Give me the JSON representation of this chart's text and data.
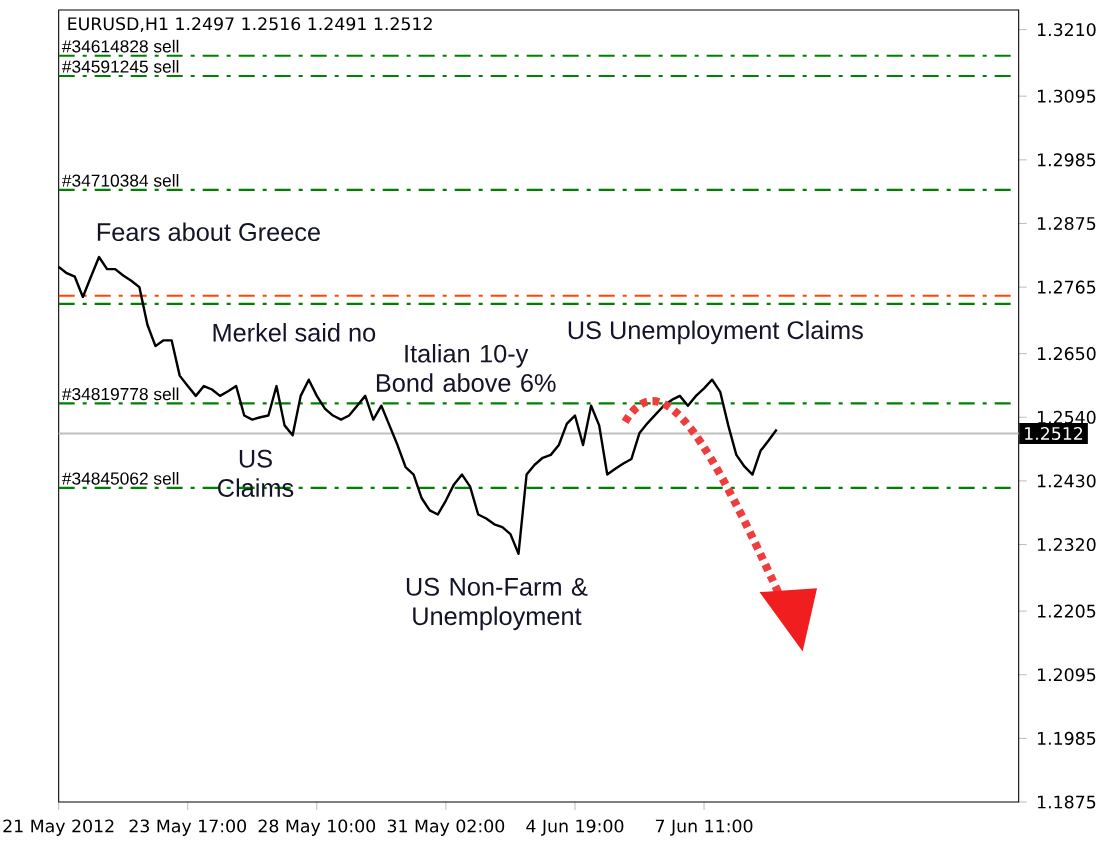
{
  "chart_data": {
    "type": "line",
    "title": "EURUSD,H1  1.2497 1.2516 1.2491 1.2512",
    "categories": [
      "21 May 2012",
      null,
      null,
      null,
      null,
      null,
      null,
      null,
      null,
      null,
      null,
      null,
      null,
      null,
      null,
      null,
      "23 May 17:00",
      null,
      null,
      null,
      null,
      null,
      null,
      null,
      null,
      null,
      null,
      null,
      null,
      null,
      null,
      null,
      "28 May 10:00",
      null,
      null,
      null,
      null,
      null,
      null,
      null,
      null,
      null,
      null,
      null,
      null,
      null,
      null,
      null,
      "31 May 02:00",
      null,
      null,
      null,
      null,
      null,
      null,
      null,
      null,
      null,
      null,
      null,
      null,
      null,
      null,
      null,
      "4 Jun 19:00",
      null,
      null,
      null,
      null,
      null,
      null,
      null,
      null,
      null,
      null,
      null,
      null,
      null,
      null,
      null,
      "7 Jun 11:00",
      null,
      null,
      null,
      null,
      null,
      null,
      null,
      null,
      null,
      null,
      null,
      null,
      null,
      null,
      null,
      null,
      null,
      null,
      null,
      null,
      null,
      null,
      null,
      null,
      null,
      null,
      null,
      null,
      null,
      null,
      null,
      null,
      null,
      null,
      null,
      null,
      null,
      null,
      null
    ],
    "series": [
      {
        "color": "#000000",
        "values": [
          1.28,
          1.2789,
          1.2783,
          1.2748,
          1.2783,
          1.2817,
          1.2796,
          1.2796,
          1.2785,
          1.2776,
          1.2765,
          1.27,
          1.2663,
          1.2673,
          1.2673,
          1.2612,
          1.2594,
          1.2577,
          1.2594,
          1.2588,
          1.2577,
          1.2585,
          1.2594,
          1.2543,
          1.2536,
          1.254,
          1.2543,
          1.2594,
          1.2526,
          1.2509,
          1.2577,
          1.2605,
          1.2577,
          1.2555,
          1.2543,
          1.2536,
          1.2543,
          1.256,
          1.2577,
          1.2536,
          1.256,
          1.2526,
          1.2492,
          1.2454,
          1.2441,
          1.24,
          1.2379,
          1.2372,
          1.2396,
          1.2424,
          1.2441,
          1.242,
          1.2372,
          1.2365,
          1.2355,
          1.235,
          1.2338,
          1.2304,
          1.2441,
          1.2458,
          1.247,
          1.2475,
          1.2492,
          1.2529,
          1.2543,
          1.2492,
          1.256,
          1.2526,
          1.2441,
          1.2451,
          1.246,
          1.2468,
          1.2513,
          1.253,
          1.2545,
          1.256,
          1.257,
          1.2577,
          1.256,
          1.2577,
          1.259,
          1.2605,
          1.2584,
          1.2526,
          1.2475,
          1.2455,
          1.2441,
          1.2482,
          1.25,
          1.2519,
          null,
          null,
          null,
          null,
          null,
          null,
          null,
          null,
          null,
          null,
          null,
          null,
          null,
          null,
          null,
          null,
          null,
          null,
          null,
          null,
          null,
          null,
          null,
          null,
          null,
          null,
          null,
          null,
          null,
          null
        ]
      }
    ],
    "ylim": [
      1.1875,
      1.3244
    ],
    "yticks": [
      {
        "value": 1.321,
        "label": "1.3210"
      },
      1.3095,
      1.2985,
      1.2875,
      1.2765,
      {
        "value": 1.265,
        "label": "1.2650"
      },
      {
        "value": 1.254,
        "label": "1.2540"
      },
      {
        "value": 1.243,
        "label": "1.2430"
      },
      {
        "value": 1.232,
        "label": "1.2320"
      },
      1.2205,
      1.2095,
      1.1985,
      1.1875
    ],
    "ref_lines": [
      {
        "axis": "y",
        "value": 1.3165,
        "label": "#34614828 sell",
        "color": "#008000",
        "line_style": "dashdot"
      },
      {
        "axis": "y",
        "value": 1.313,
        "label": "#34591245 sell",
        "color": "#008000",
        "line_style": "dashdot"
      },
      {
        "axis": "y",
        "value": 1.2933,
        "label": "#34710384 sell",
        "color": "#008000",
        "line_style": "dashdot"
      },
      {
        "axis": "y",
        "value": 1.275,
        "color": "#ff4500",
        "line_style": "dashdot"
      },
      {
        "axis": "y",
        "value": 1.2736,
        "color": "#008000",
        "line_style": "dashdot"
      },
      {
        "axis": "y",
        "value": 1.2564,
        "label": "#34819778 sell",
        "color": "#008000",
        "line_style": "dashdot"
      },
      {
        "axis": "y",
        "value": 1.2418,
        "label": "#34845062 sell",
        "color": "#008000",
        "line_style": "dashdot"
      },
      {
        "axis": "y",
        "value": 1.2512,
        "label": "1.2512",
        "color": "#c0c0c0",
        "line_style": "solid"
      }
    ],
    "annotations": [
      "Fears about Greece",
      "Merkel said no",
      "Italian 10-y Bond above 6%",
      "US Claims",
      "US Unemployment Claims",
      "US Non-Farm & Unemployment"
    ],
    "grid": false,
    "marker": "none",
    "line_style": "solid"
  }
}
